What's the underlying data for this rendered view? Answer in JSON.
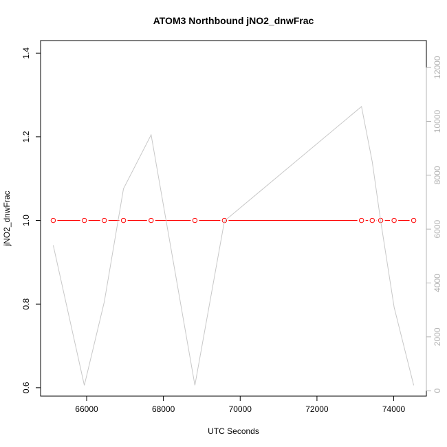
{
  "chart_data": {
    "type": "line",
    "title": "ATOM3 Northbound jNO2_dnwFrac",
    "xlabel": "UTC Seconds",
    "ylabel": "jNO2_dnwFrac",
    "xlim": [
      64800,
      74850
    ],
    "ylim": [
      0.58,
      1.43
    ],
    "y2lim": [
      -200,
      13000
    ],
    "x_ticks": [
      66000,
      68000,
      70000,
      72000,
      74000
    ],
    "x_tick_labels": [
      "66000",
      "68000",
      "70000",
      "72000",
      "74000"
    ],
    "y_ticks": [
      0.6,
      0.8,
      1.0,
      1.2,
      1.4
    ],
    "y_tick_labels": [
      "0.6",
      "0.8",
      "1.0",
      "1.2",
      "1.4"
    ],
    "y2_ticks": [
      0,
      2000,
      4000,
      6000,
      8000,
      10000,
      12000
    ],
    "y2_tick_labels": [
      "0",
      "2000",
      "4000",
      "6000",
      "8000",
      "10000",
      "12000"
    ],
    "grid": false,
    "series": [
      {
        "axis": "left",
        "color": "#ff0000",
        "marker": "open-circle",
        "x": [
          65130,
          65940,
          66460,
          66960,
          67680,
          68820,
          69590,
          73160,
          73440,
          73660,
          74010,
          74520
        ],
        "y": [
          1.0,
          1.0,
          1.0,
          1.0,
          1.0,
          1.0,
          1.0,
          1.0,
          1.0,
          1.0,
          1.0,
          1.0
        ]
      },
      {
        "axis": "right",
        "color": "#c8c8c8",
        "marker": "none",
        "x": [
          65130,
          65940,
          66460,
          66960,
          67680,
          68820,
          69590,
          73160,
          73440,
          73660,
          74010,
          74520
        ],
        "y": [
          5400,
          200,
          3300,
          7500,
          9500,
          200,
          6300,
          10550,
          8500,
          6300,
          3100,
          200
        ]
      }
    ]
  }
}
